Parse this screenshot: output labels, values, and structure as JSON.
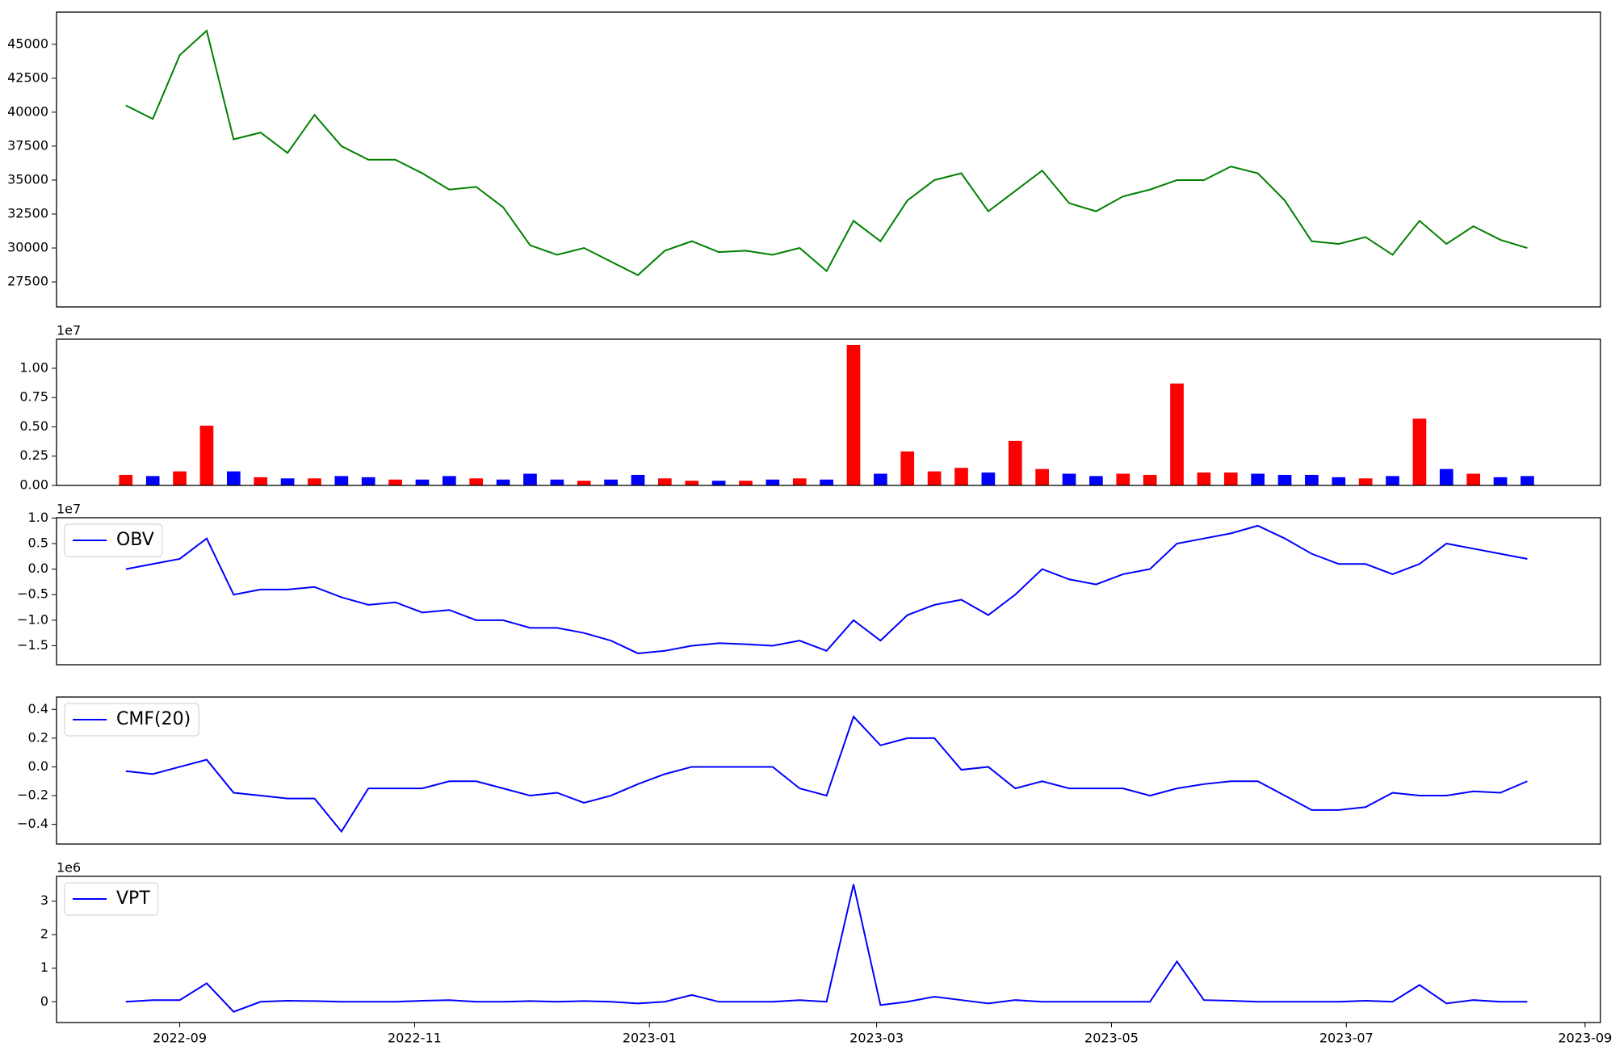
{
  "chart_data": [
    {
      "type": "line",
      "x": [
        "2022-08-18",
        "2022-08-25",
        "2022-09-01",
        "2022-09-08",
        "2022-09-15",
        "2022-09-22",
        "2022-09-29",
        "2022-10-06",
        "2022-10-13",
        "2022-10-20",
        "2022-10-27",
        "2022-11-03",
        "2022-11-10",
        "2022-11-17",
        "2022-11-24",
        "2022-12-01",
        "2022-12-08",
        "2022-12-15",
        "2022-12-22",
        "2022-12-29",
        "2023-01-05",
        "2023-01-12",
        "2023-01-19",
        "2023-01-26",
        "2023-02-02",
        "2023-02-09",
        "2023-02-16",
        "2023-02-23",
        "2023-03-02",
        "2023-03-09",
        "2023-03-16",
        "2023-03-23",
        "2023-03-30",
        "2023-04-06",
        "2023-04-13",
        "2023-04-20",
        "2023-04-27",
        "2023-05-04",
        "2023-05-11",
        "2023-05-18",
        "2023-05-25",
        "2023-06-01",
        "2023-06-08",
        "2023-06-15",
        "2023-06-22",
        "2023-06-29",
        "2023-07-06",
        "2023-07-13",
        "2023-07-20",
        "2023-07-27",
        "2023-08-03",
        "2023-08-10",
        "2023-08-17"
      ],
      "xlim": [
        "2022-07-31",
        "2023-09-05"
      ],
      "series": [
        {
          "color": "#008000",
          "values": [
            40500,
            39500,
            44200,
            46000,
            38000,
            38500,
            37000,
            39800,
            37500,
            36500,
            36500,
            35500,
            34300,
            34500,
            33000,
            30200,
            29500,
            30000,
            29000,
            28000,
            29800,
            30500,
            29700,
            29800,
            29500,
            30000,
            28300,
            32000,
            30500,
            33500,
            35000,
            35500,
            32700,
            34200,
            35700,
            33300,
            32700,
            33800,
            34300,
            35000,
            35000,
            36000,
            35500,
            33500,
            30500,
            30300,
            30800,
            29500,
            32000,
            30300,
            31600,
            30600,
            30000
          ]
        }
      ],
      "ylim": [
        25660,
        47370
      ],
      "yticks": [
        27500,
        30000,
        32500,
        35000,
        37500,
        40000,
        42500,
        45000
      ]
    },
    {
      "type": "bar",
      "x": [
        "2022-08-18",
        "2022-08-25",
        "2022-09-01",
        "2022-09-08",
        "2022-09-15",
        "2022-09-22",
        "2022-09-29",
        "2022-10-06",
        "2022-10-13",
        "2022-10-20",
        "2022-10-27",
        "2022-11-03",
        "2022-11-10",
        "2022-11-17",
        "2022-11-24",
        "2022-12-01",
        "2022-12-08",
        "2022-12-15",
        "2022-12-22",
        "2022-12-29",
        "2023-01-05",
        "2023-01-12",
        "2023-01-19",
        "2023-01-26",
        "2023-02-02",
        "2023-02-09",
        "2023-02-16",
        "2023-02-23",
        "2023-03-02",
        "2023-03-09",
        "2023-03-16",
        "2023-03-23",
        "2023-03-30",
        "2023-04-06",
        "2023-04-13",
        "2023-04-20",
        "2023-04-27",
        "2023-05-04",
        "2023-05-11",
        "2023-05-18",
        "2023-05-25",
        "2023-06-01",
        "2023-06-08",
        "2023-06-15",
        "2023-06-22",
        "2023-06-29",
        "2023-07-06",
        "2023-07-13",
        "2023-07-20",
        "2023-07-27",
        "2023-08-03",
        "2023-08-10",
        "2023-08-17"
      ],
      "xlim": [
        "2022-07-31",
        "2023-09-05"
      ],
      "series": [
        {
          "values": [
            900000,
            800000,
            1200000,
            5100000,
            1200000,
            700000,
            600000,
            600000,
            800000,
            700000,
            500000,
            500000,
            800000,
            600000,
            500000,
            1000000,
            500000,
            400000,
            500000,
            900000,
            600000,
            400000,
            400000,
            400000,
            500000,
            600000,
            500000,
            12000000,
            1000000,
            2900000,
            1200000,
            1500000,
            1100000,
            3800000,
            1400000,
            1000000,
            800000,
            1000000,
            900000,
            8700000,
            1100000,
            1100000,
            1000000,
            900000,
            900000,
            700000,
            600000,
            800000,
            5700000,
            1400000,
            1000000,
            700000,
            800000
          ],
          "colors": [
            "red",
            "blue",
            "red",
            "red",
            "blue",
            "red",
            "blue",
            "red",
            "blue",
            "blue",
            "red",
            "blue",
            "blue",
            "red",
            "blue",
            "blue",
            "blue",
            "red",
            "blue",
            "blue",
            "red",
            "red",
            "blue",
            "red",
            "blue",
            "red",
            "blue",
            "red",
            "blue",
            "red",
            "red",
            "red",
            "blue",
            "red",
            "red",
            "blue",
            "blue",
            "red",
            "red",
            "red",
            "red",
            "red",
            "blue",
            "blue",
            "blue",
            "blue",
            "red",
            "blue",
            "red",
            "blue",
            "red",
            "blue",
            "blue"
          ]
        }
      ],
      "ylim": [
        0,
        12480000
      ],
      "offset_label": "1e7",
      "yticks": [
        {
          "value": 0,
          "label": "0.00"
        },
        {
          "value": 2500000,
          "label": "0.25"
        },
        {
          "value": 5000000,
          "label": "0.50"
        },
        {
          "value": 7500000,
          "label": "0.75"
        },
        {
          "value": 10000000,
          "label": "1.00"
        }
      ]
    },
    {
      "type": "line",
      "x": [
        "2022-08-18",
        "2022-08-25",
        "2022-09-01",
        "2022-09-08",
        "2022-09-15",
        "2022-09-22",
        "2022-09-29",
        "2022-10-06",
        "2022-10-13",
        "2022-10-20",
        "2022-10-27",
        "2022-11-03",
        "2022-11-10",
        "2022-11-17",
        "2022-11-24",
        "2022-12-01",
        "2022-12-08",
        "2022-12-15",
        "2022-12-22",
        "2022-12-29",
        "2023-01-05",
        "2023-01-12",
        "2023-01-19",
        "2023-01-26",
        "2023-02-02",
        "2023-02-09",
        "2023-02-16",
        "2023-02-23",
        "2023-03-02",
        "2023-03-09",
        "2023-03-16",
        "2023-03-23",
        "2023-03-30",
        "2023-04-06",
        "2023-04-13",
        "2023-04-20",
        "2023-04-27",
        "2023-05-04",
        "2023-05-11",
        "2023-05-18",
        "2023-05-25",
        "2023-06-01",
        "2023-06-08",
        "2023-06-15",
        "2023-06-22",
        "2023-06-29",
        "2023-07-06",
        "2023-07-13",
        "2023-07-20",
        "2023-07-27",
        "2023-08-03",
        "2023-08-10",
        "2023-08-17"
      ],
      "xlim": [
        "2022-07-31",
        "2023-09-05"
      ],
      "series": [
        {
          "name": "OBV",
          "color": "blue",
          "values": [
            0,
            1000000,
            2000000,
            6000000,
            -5000000,
            -4000000,
            -4000000,
            -3500000,
            -5500000,
            -7000000,
            -6500000,
            -8500000,
            -8000000,
            -10000000,
            -10000000,
            -11500000,
            -11500000,
            -12500000,
            -14000000,
            -16500000,
            -16000000,
            -15000000,
            -14500000,
            -14700000,
            -15000000,
            -14000000,
            -16000000,
            -10000000,
            -14000000,
            -9000000,
            -7000000,
            -6000000,
            -9000000,
            -5000000,
            0,
            -2000000,
            -3000000,
            -1000000,
            0,
            5000000,
            6000000,
            7000000,
            8500000,
            6000000,
            3000000,
            1000000,
            1000000,
            -1000000,
            1000000,
            5000000,
            4000000,
            3000000,
            2000000
          ]
        }
      ],
      "legend": "upper left",
      "ylim": [
        -18720000,
        10060000
      ],
      "offset_label": "1e7",
      "yticks": [
        {
          "value": -15000000,
          "label": "−1.5"
        },
        {
          "value": -10000000,
          "label": "−1.0"
        },
        {
          "value": -5000000,
          "label": "−0.5"
        },
        {
          "value": 0,
          "label": "0.0"
        },
        {
          "value": 5000000,
          "label": "0.5"
        },
        {
          "value": 10000000,
          "label": "1.0"
        }
      ]
    },
    {
      "type": "line",
      "x": [
        "2022-08-18",
        "2022-08-25",
        "2022-09-01",
        "2022-09-08",
        "2022-09-15",
        "2022-09-22",
        "2022-09-29",
        "2022-10-06",
        "2022-10-13",
        "2022-10-20",
        "2022-10-27",
        "2022-11-03",
        "2022-11-10",
        "2022-11-17",
        "2022-11-24",
        "2022-12-01",
        "2022-12-08",
        "2022-12-15",
        "2022-12-22",
        "2022-12-29",
        "2023-01-05",
        "2023-01-12",
        "2023-01-19",
        "2023-01-26",
        "2023-02-02",
        "2023-02-09",
        "2023-02-16",
        "2023-02-23",
        "2023-03-02",
        "2023-03-09",
        "2023-03-16",
        "2023-03-23",
        "2023-03-30",
        "2023-04-06",
        "2023-04-13",
        "2023-04-20",
        "2023-04-27",
        "2023-05-04",
        "2023-05-11",
        "2023-05-18",
        "2023-05-25",
        "2023-06-01",
        "2023-06-08",
        "2023-06-15",
        "2023-06-22",
        "2023-06-29",
        "2023-07-06",
        "2023-07-13",
        "2023-07-20",
        "2023-07-27",
        "2023-08-03",
        "2023-08-10",
        "2023-08-17"
      ],
      "xlim": [
        "2022-07-31",
        "2023-09-05"
      ],
      "series": [
        {
          "name": "CMF(20)",
          "color": "blue",
          "values": [
            -0.03,
            -0.05,
            0.0,
            0.05,
            -0.18,
            -0.2,
            -0.22,
            -0.22,
            -0.45,
            -0.15,
            -0.15,
            -0.15,
            -0.1,
            -0.1,
            -0.15,
            -0.2,
            -0.18,
            -0.25,
            -0.2,
            -0.12,
            -0.05,
            0.0,
            0.0,
            0.0,
            0.0,
            -0.15,
            -0.2,
            0.35,
            0.15,
            0.2,
            0.2,
            -0.02,
            0.0,
            -0.15,
            -0.1,
            -0.15,
            -0.15,
            -0.15,
            -0.2,
            -0.15,
            -0.12,
            -0.1,
            -0.1,
            -0.2,
            -0.3,
            -0.3,
            -0.28,
            -0.18,
            -0.2,
            -0.2,
            -0.17,
            -0.18,
            -0.1
          ]
        }
      ],
      "legend": "upper left",
      "ylim": [
        -0.537,
        0.486
      ],
      "yticks": [
        {
          "value": -0.4,
          "label": "−0.4"
        },
        {
          "value": -0.2,
          "label": "−0.2"
        },
        {
          "value": 0,
          "label": "0.0"
        },
        {
          "value": 0.2,
          "label": "0.2"
        },
        {
          "value": 0.4,
          "label": "0.4"
        }
      ]
    },
    {
      "type": "line",
      "x": [
        "2022-08-18",
        "2022-08-25",
        "2022-09-01",
        "2022-09-08",
        "2022-09-15",
        "2022-09-22",
        "2022-09-29",
        "2022-10-06",
        "2022-10-13",
        "2022-10-20",
        "2022-10-27",
        "2022-11-03",
        "2022-11-10",
        "2022-11-17",
        "2022-11-24",
        "2022-12-01",
        "2022-12-08",
        "2022-12-15",
        "2022-12-22",
        "2022-12-29",
        "2023-01-05",
        "2023-01-12",
        "2023-01-19",
        "2023-01-26",
        "2023-02-02",
        "2023-02-09",
        "2023-02-16",
        "2023-02-23",
        "2023-03-02",
        "2023-03-09",
        "2023-03-16",
        "2023-03-23",
        "2023-03-30",
        "2023-04-06",
        "2023-04-13",
        "2023-04-20",
        "2023-04-27",
        "2023-05-04",
        "2023-05-11",
        "2023-05-18",
        "2023-05-25",
        "2023-06-01",
        "2023-06-08",
        "2023-06-15",
        "2023-06-22",
        "2023-06-29",
        "2023-07-06",
        "2023-07-13",
        "2023-07-20",
        "2023-07-27",
        "2023-08-03",
        "2023-08-10",
        "2023-08-17"
      ],
      "xlim": [
        "2022-07-31",
        "2023-09-05"
      ],
      "xticks": [
        {
          "value": "2022-09-01",
          "label": "2022-09"
        },
        {
          "value": "2022-11-01",
          "label": "2022-11"
        },
        {
          "value": "2023-01-01",
          "label": "2023-01"
        },
        {
          "value": "2023-03-01",
          "label": "2023-03"
        },
        {
          "value": "2023-05-01",
          "label": "2023-05"
        },
        {
          "value": "2023-07-01",
          "label": "2023-07"
        },
        {
          "value": "2023-09-01",
          "label": "2023-09"
        }
      ],
      "series": [
        {
          "name": "VPT",
          "color": "blue",
          "values": [
            0,
            50000,
            50000,
            550000,
            -300000,
            0,
            30000,
            20000,
            0,
            0,
            0,
            30000,
            50000,
            0,
            0,
            20000,
            0,
            20000,
            0,
            -50000,
            0,
            200000,
            0,
            0,
            0,
            50000,
            0,
            3500000,
            -100000,
            0,
            150000,
            50000,
            -50000,
            50000,
            0,
            0,
            0,
            0,
            0,
            1200000,
            50000,
            30000,
            0,
            0,
            0,
            0,
            30000,
            0,
            500000,
            -50000,
            50000,
            0,
            0
          ]
        }
      ],
      "legend": "upper left",
      "ylim": [
        -620000,
        3740000
      ],
      "offset_label": "1e6",
      "yticks": [
        {
          "value": 0,
          "label": "0"
        },
        {
          "value": 1000000,
          "label": "1"
        },
        {
          "value": 2000000,
          "label": "2"
        },
        {
          "value": 3000000,
          "label": "3"
        }
      ]
    }
  ]
}
